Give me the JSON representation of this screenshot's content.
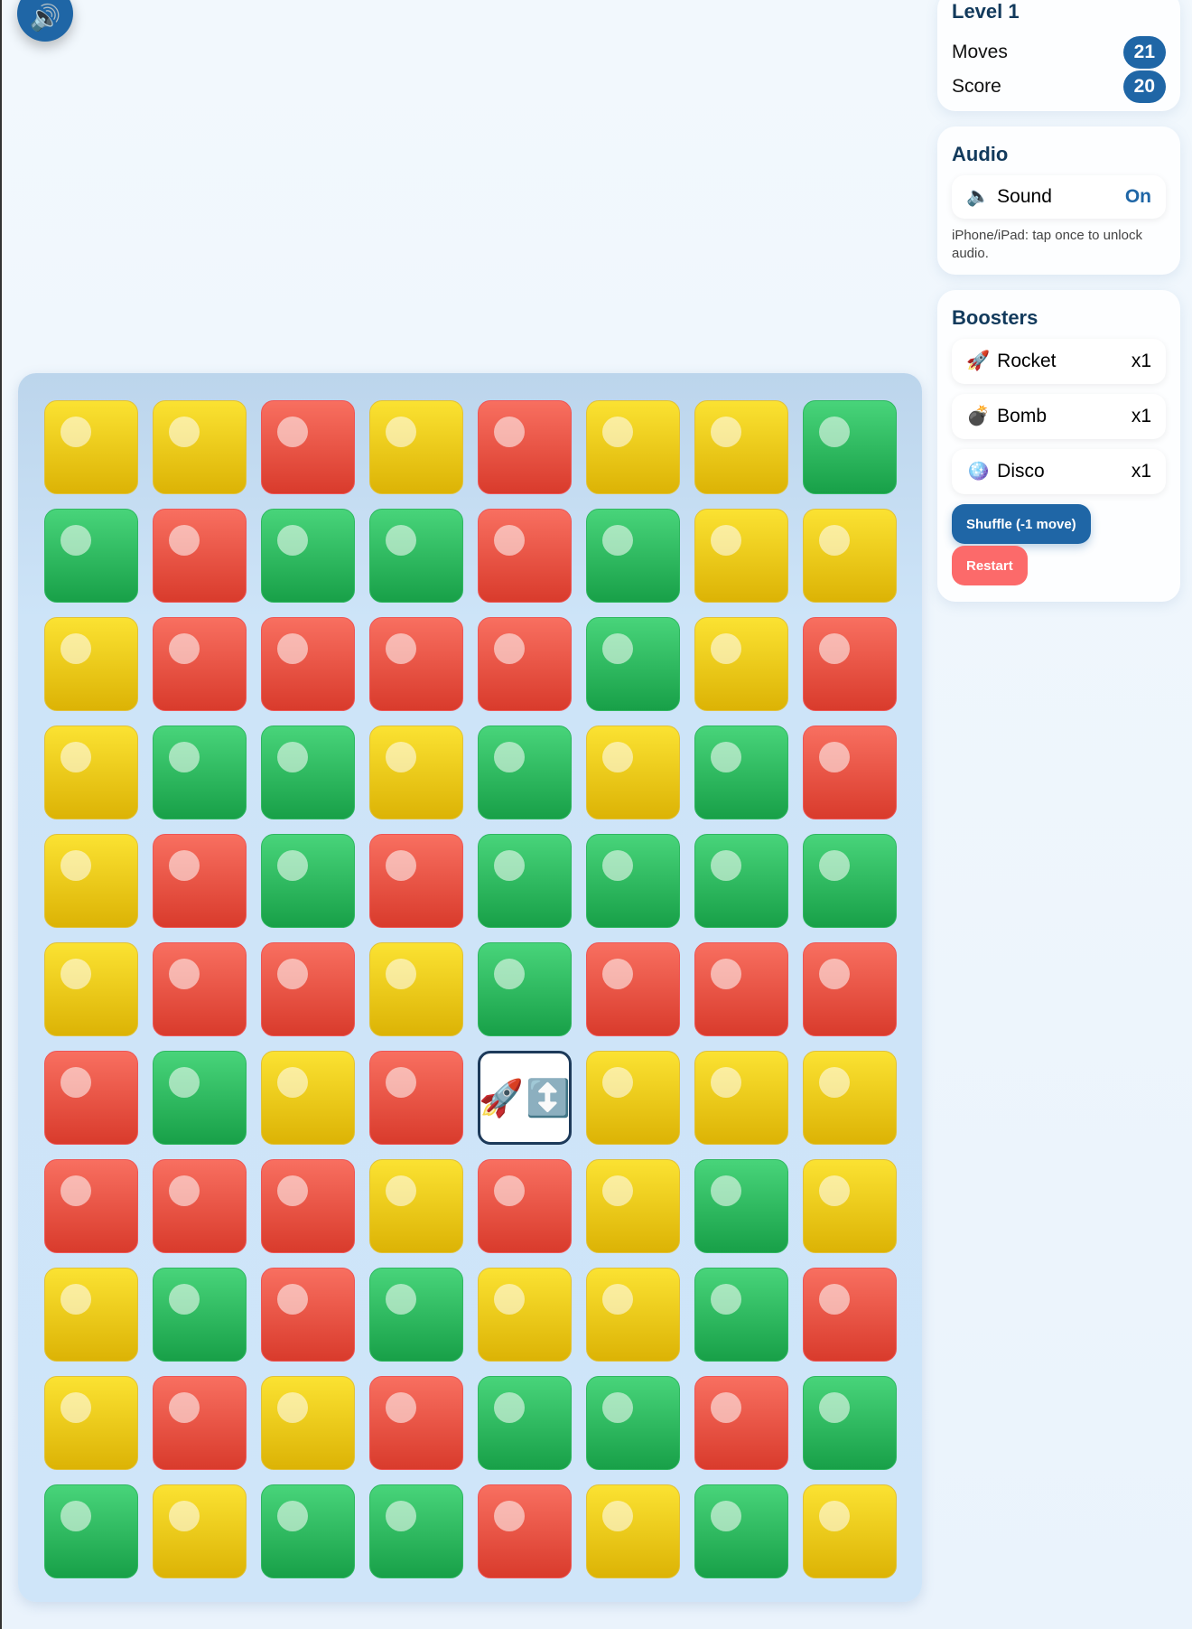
{
  "sound_button": {
    "icon": "speaker-icon",
    "glyph": "🔊"
  },
  "level": {
    "title": "Level 1",
    "moves_label": "Moves",
    "moves": "21",
    "score_label": "Score",
    "score": "20"
  },
  "audio": {
    "title": "Audio",
    "sound_glyph": "🔈",
    "sound_label": "Sound",
    "sound_state": "On",
    "note": "iPhone/iPad: tap once to unlock audio."
  },
  "boosters": {
    "title": "Boosters",
    "items": [
      {
        "glyph": "🚀",
        "label": "Rocket",
        "count": "x1"
      },
      {
        "glyph": "💣",
        "label": "Bomb",
        "count": "x1"
      },
      {
        "glyph": "🪩",
        "label": "Disco",
        "count": "x1"
      }
    ],
    "shuffle": "Shuffle (-1 move)",
    "restart": "Restart"
  },
  "colors": {
    "Y": "#f2cc1a",
    "R": "#ee5443",
    "G": "#2fbb5e",
    "accent": "#1f66a6",
    "restart": "#fc6a6a"
  },
  "board": {
    "rows": [
      "YYRYRYYG",
      "GRGGRGYY",
      "YRRRRGYR",
      "YGGYGYGR",
      "YRGRGGGG",
      "YRRYGRRR",
      "RGYRSYYY",
      "RRRYRYGY",
      "YGRGYYGR",
      "YRYRGGRG",
      "GYGGRYGY"
    ],
    "special": {
      "rocket": "🚀",
      "arrow": "↕️"
    }
  }
}
